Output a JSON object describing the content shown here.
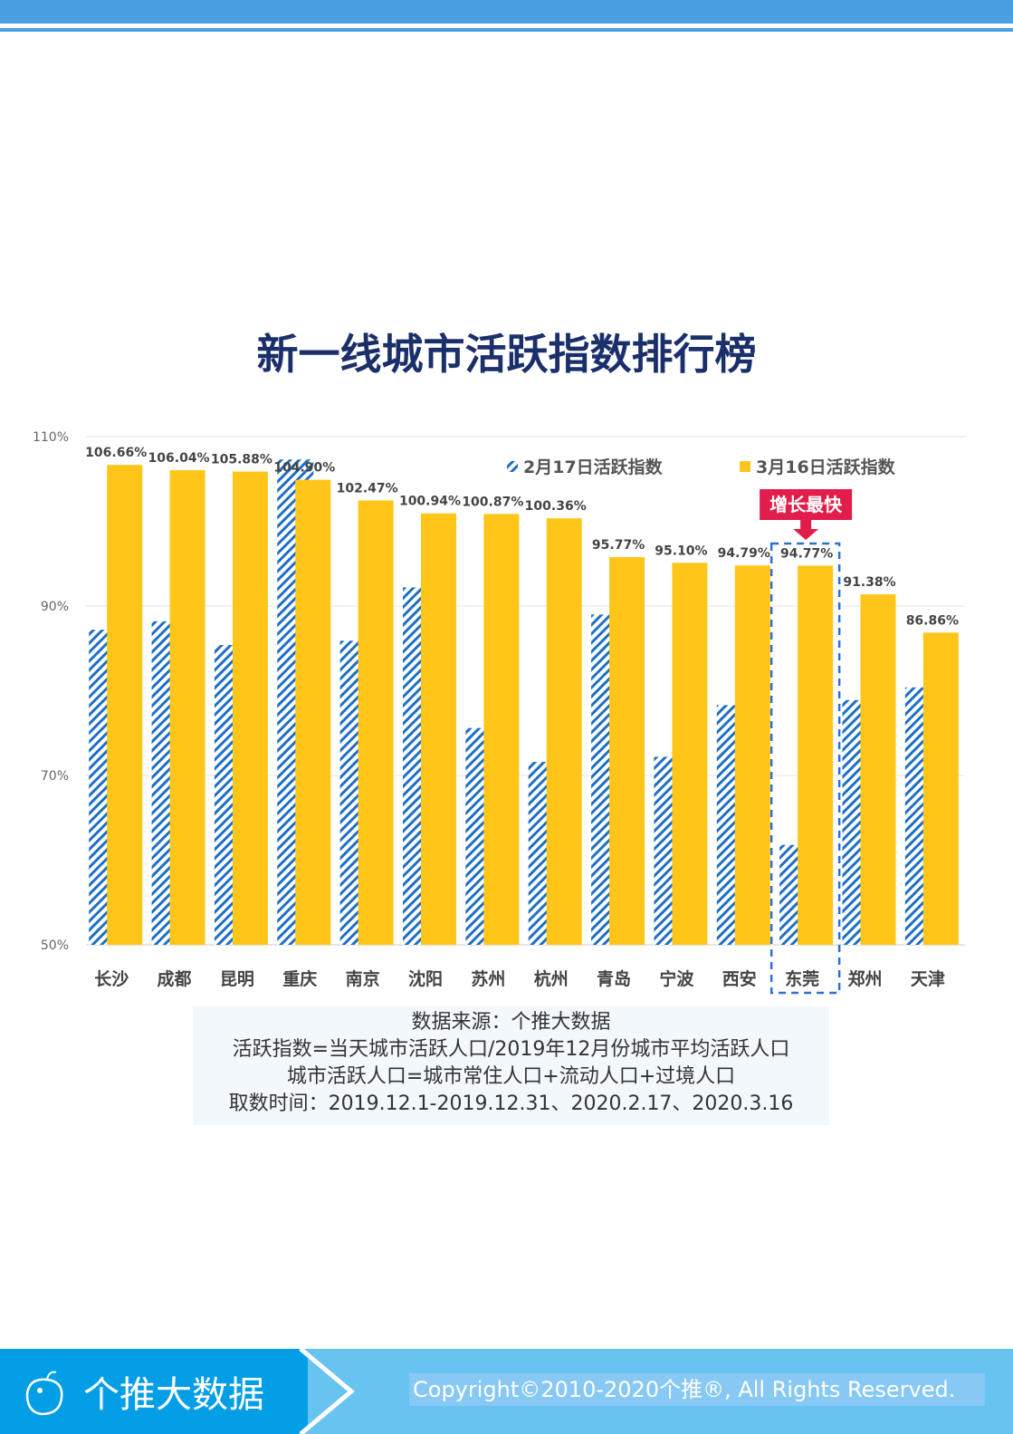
{
  "page": {
    "title": "新一线城市活跃指数排行榜"
  },
  "chart_data": {
    "type": "bar",
    "title": "新一线城市活跃指数排行榜",
    "categories": [
      "长沙",
      "成都",
      "昆明",
      "重庆",
      "南京",
      "沈阳",
      "苏州",
      "杭州",
      "青岛",
      "宁波",
      "西安",
      "东莞",
      "郑州",
      "天津"
    ],
    "series": [
      {
        "name": "2月17日活跃指数",
        "color": "#1f6fc5",
        "pattern": "hatched",
        "values": [
          87.2,
          88.2,
          85.4,
          107.3,
          85.9,
          92.2,
          75.6,
          71.6,
          89.0,
          72.2,
          78.3,
          61.8,
          78.9,
          80.4
        ]
      },
      {
        "name": "3月16日活跃指数",
        "color": "#ffc619",
        "values": [
          106.66,
          106.04,
          105.88,
          104.9,
          102.47,
          100.94,
          100.87,
          100.36,
          95.77,
          95.1,
          94.79,
          94.77,
          91.38,
          86.86
        ],
        "labels": [
          "106.66%",
          "106.04%",
          "105.88%",
          "104.90%",
          "102.47%",
          "100.94%",
          "100.87%",
          "100.36%",
          "95.77%",
          "95.10%",
          "94.79%",
          "94.77%",
          "91.38%",
          "86.86%"
        ]
      }
    ],
    "yticks": [
      "50%",
      "70%",
      "90%",
      "110%"
    ],
    "ylim": [
      50,
      110
    ],
    "legend": "top-right",
    "annotation": {
      "text": "增长最快",
      "category": "东莞"
    }
  },
  "note": {
    "lines": [
      "数据来源：个推大数据",
      "活跃指数=当天城市活跃人口/2019年12月份城市平均活跃人口",
      "城市活跃人口=城市常住人口+流动人口+过境人口",
      "取数时间：2019.12.1-2019.12.31、2020.2.17、2020.3.16"
    ]
  },
  "footer": {
    "brand": "个推大数据",
    "copyright": "Copyright©2010-2020个推®, All Rights Reserved."
  }
}
